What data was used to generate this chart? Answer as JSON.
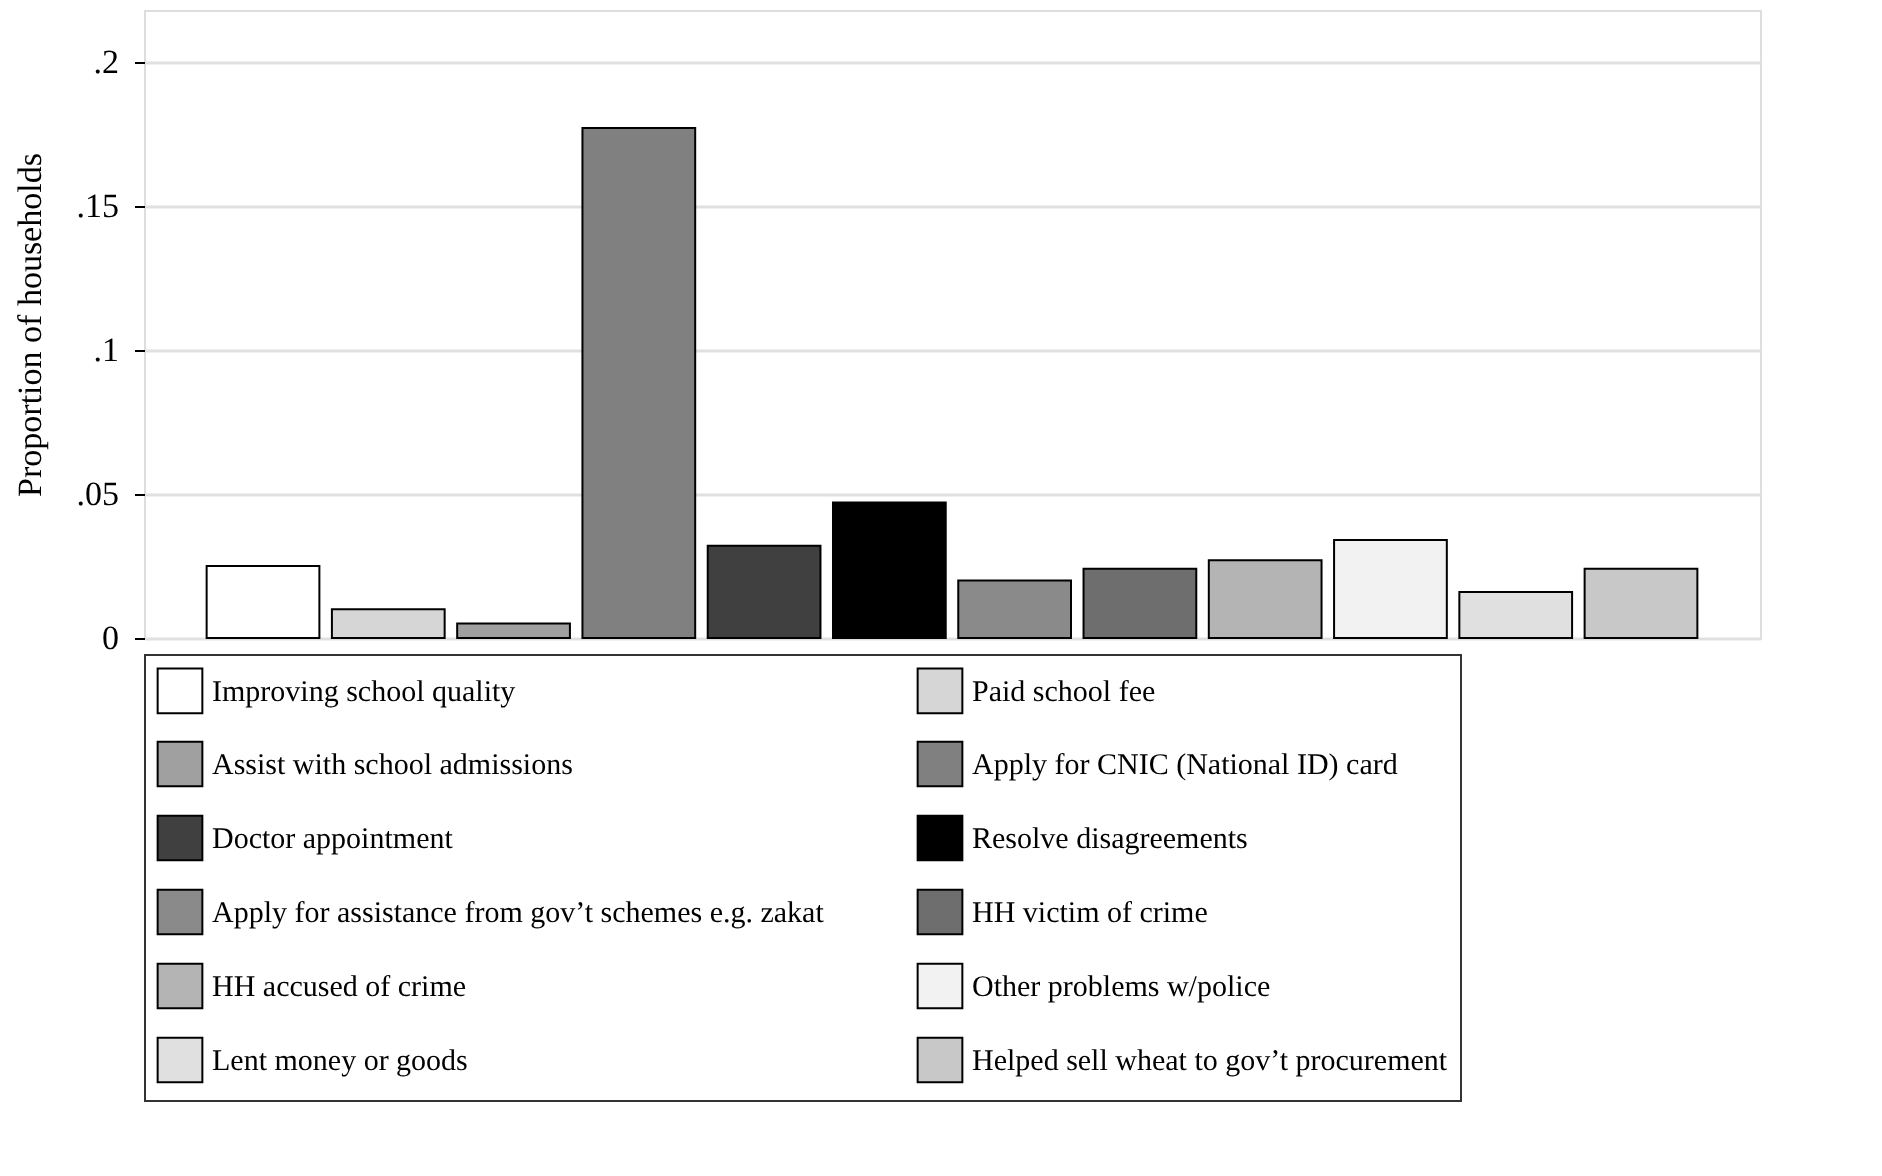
{
  "chart_data": {
    "type": "bar",
    "ylabel": "Proportion of households",
    "categories": [
      null,
      null,
      null,
      null,
      null,
      null,
      null,
      null,
      null,
      null,
      null,
      null
    ],
    "series": [
      {
        "name": "Improving school quality",
        "color": "#ffffff",
        "values": [
          0.025,
          null,
          null,
          null,
          null,
          null,
          null,
          null,
          null,
          null,
          null,
          null
        ]
      },
      {
        "name": "Paid school fee",
        "color": "#d6d6d6",
        "values": [
          null,
          0.01,
          null,
          null,
          null,
          null,
          null,
          null,
          null,
          null,
          null,
          null
        ]
      },
      {
        "name": "Assist with school admissions",
        "color": "#a0a0a0",
        "values": [
          null,
          null,
          0.005,
          null,
          null,
          null,
          null,
          null,
          null,
          null,
          null,
          null
        ]
      },
      {
        "name": "Apply for CNIC (National ID) card",
        "color": "#808080",
        "values": [
          null,
          null,
          null,
          0.177,
          null,
          null,
          null,
          null,
          null,
          null,
          null,
          null
        ]
      },
      {
        "name": "Doctor appointment",
        "color": "#404040",
        "values": [
          null,
          null,
          null,
          null,
          0.032,
          null,
          null,
          null,
          null,
          null,
          null,
          null
        ]
      },
      {
        "name": "Resolve disagreements",
        "color": "#000000",
        "values": [
          null,
          null,
          null,
          null,
          null,
          0.047,
          null,
          null,
          null,
          null,
          null,
          null
        ]
      },
      {
        "name": "Apply for assistance from gov’t schemes  e.g. zakat",
        "color": "#8a8a8a",
        "values": [
          null,
          null,
          null,
          null,
          null,
          null,
          0.02,
          null,
          null,
          null,
          null,
          null
        ]
      },
      {
        "name": "HH victim of crime",
        "color": "#6e6e6e",
        "values": [
          null,
          null,
          null,
          null,
          null,
          null,
          null,
          0.024,
          null,
          null,
          null,
          null
        ]
      },
      {
        "name": "HH accused of crime",
        "color": "#b4b4b4",
        "values": [
          null,
          null,
          null,
          null,
          null,
          null,
          null,
          null,
          0.027,
          null,
          null,
          null
        ]
      },
      {
        "name": "Other problems w/police",
        "color": "#f2f2f2",
        "values": [
          null,
          null,
          null,
          null,
          null,
          null,
          null,
          null,
          null,
          0.034,
          null,
          null
        ]
      },
      {
        "name": "Lent money or goods",
        "color": "#e0e0e0",
        "values": [
          null,
          null,
          null,
          null,
          null,
          null,
          null,
          null,
          null,
          null,
          0.016,
          null
        ]
      },
      {
        "name": "Helped sell wheat to gov’t procurement",
        "color": "#c8c8c8",
        "values": [
          null,
          null,
          null,
          null,
          null,
          null,
          null,
          null,
          null,
          null,
          null,
          0.024
        ]
      }
    ],
    "ylim": [
      0,
      0.218
    ],
    "yticks": [
      {
        "value": 0,
        "label": "0"
      },
      {
        "value": 0.05,
        "label": ".05"
      },
      {
        "value": 0.1,
        "label": ".1"
      },
      {
        "value": 0.15,
        "label": ".15"
      },
      {
        "value": 0.2,
        "label": ".2"
      }
    ],
    "grid": "y",
    "legend": "bottom",
    "tick_labels": "y"
  }
}
